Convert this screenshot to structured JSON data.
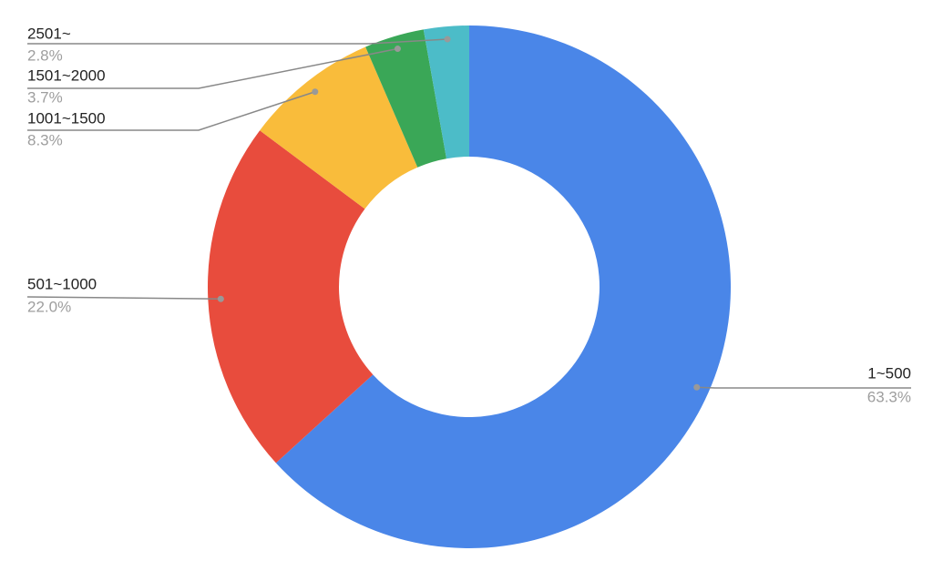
{
  "chart_data": {
    "type": "donut",
    "categories": [
      "1~500",
      "501~1000",
      "1001~1500",
      "1501~2000",
      "2501~"
    ],
    "values": [
      63.3,
      22.0,
      8.3,
      3.7,
      2.8
    ],
    "value_labels": [
      "63.3%",
      "22.0%",
      "8.3%",
      "3.7%",
      "2.8%"
    ],
    "colors": [
      "#4a86e8",
      "#e84c3d",
      "#f9bc3b",
      "#3aa757",
      "#4cbcc8"
    ]
  }
}
